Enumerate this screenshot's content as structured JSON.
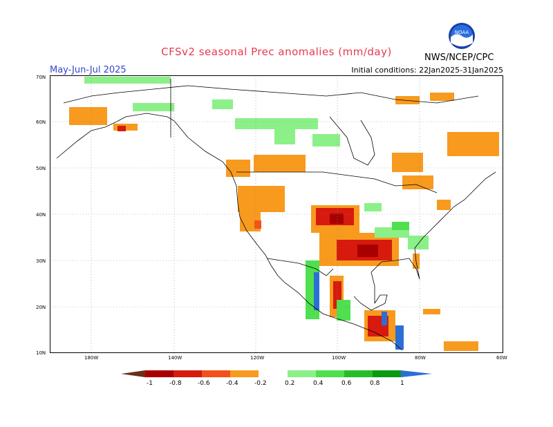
{
  "header": {
    "title": "CFSv2 seasonal Prec anomalies (mm/day)",
    "period": "May-Jun-Jul 2025",
    "initial_conditions": "Initial conditions: 22Jan2025-31Jan2025",
    "agency": "NWS/NCEP/CPC",
    "logo_text": "NOAA"
  },
  "map": {
    "lat_labels": [
      "70N",
      "60N",
      "50N",
      "40N",
      "30N",
      "20N",
      "10N"
    ],
    "lon_labels": [
      "180W",
      "140W",
      "120W",
      "100W",
      "80W",
      "60W"
    ]
  },
  "colorbar": {
    "labels": [
      "-1",
      "-0.8",
      "-0.6",
      "-0.4",
      "-0.2",
      "0.2",
      "0.4",
      "0.6",
      "0.8",
      "1"
    ],
    "colors": [
      "#6b2d1c",
      "#a80000",
      "#d71a0e",
      "#f2521a",
      "#f89a1e",
      "#ffffff",
      "#8cf088",
      "#4ee04e",
      "#26be26",
      "#0a9a12",
      "#2c6fd4"
    ]
  }
}
